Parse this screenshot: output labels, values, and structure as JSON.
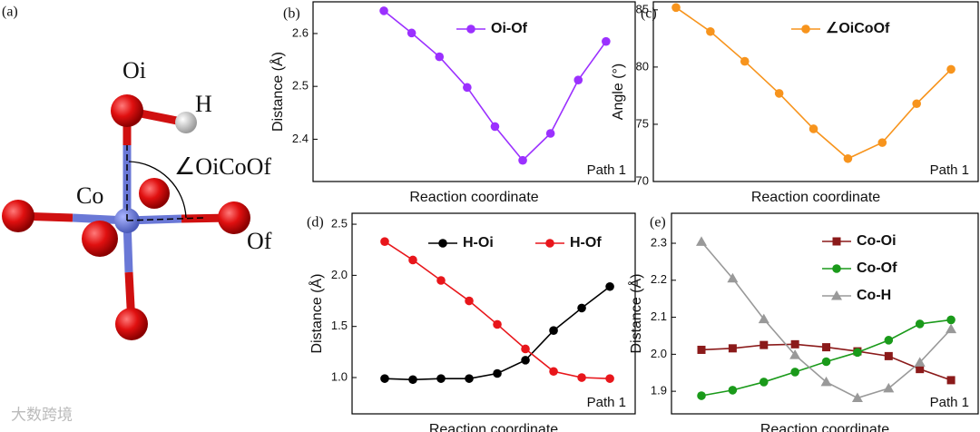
{
  "structure": {
    "label": "(a)",
    "atoms": [
      "Oi",
      "H",
      "Co",
      "Of"
    ],
    "angle": "∠OiCoOf"
  },
  "watermark": "大数跨境",
  "chart_data": [
    {
      "type": "line",
      "label": "(b)",
      "ylabel": "Distance (Å)",
      "xlabel": "Reaction coordinate",
      "annotation": "Path 1",
      "x": [
        1,
        2,
        3,
        4,
        5,
        6,
        7,
        8,
        9
      ],
      "xlim": [
        -1.55,
        10.05
      ],
      "ylim": [
        2.32,
        2.66
      ],
      "yticks": [
        2.4,
        2.5,
        2.6
      ],
      "series": [
        {
          "name": "Oi-Of",
          "color": "#9b30ff",
          "marker": "circle",
          "values": [
            2.643,
            2.601,
            2.556,
            2.498,
            2.424,
            2.36,
            2.411,
            2.512,
            2.585
          ]
        }
      ]
    },
    {
      "type": "line",
      "label": "(c)",
      "ylabel": "Angle (°)",
      "xlabel": "Reaction coordinate",
      "annotation": "Path 1",
      "x": [
        1,
        2,
        3,
        4,
        5,
        6,
        7,
        8,
        9
      ],
      "xlim": [
        0.34,
        9.79
      ],
      "ylim": [
        70,
        85.7
      ],
      "yticks": [
        70,
        75,
        80,
        85
      ],
      "series": [
        {
          "name": "∠OiCoOf",
          "color": "#f7941d",
          "marker": "circle",
          "values": [
            85.2,
            83.1,
            80.5,
            77.7,
            74.6,
            72.0,
            73.4,
            76.8,
            79.8
          ]
        }
      ]
    },
    {
      "type": "line",
      "label": "(d)",
      "ylabel": "Distance (Å)",
      "xlabel": "Reaction coordinate",
      "annotation": "Path 1",
      "x": [
        1,
        2,
        3,
        4,
        5,
        6,
        7,
        8,
        9
      ],
      "xlim": [
        -0.16,
        9.9
      ],
      "ylim": [
        0.645,
        2.607
      ],
      "yticks": [
        {
          "value": 1,
          "label": "1.0"
        },
        1.5,
        {
          "value": 2,
          "label": "2.0"
        },
        2.5
      ],
      "series": [
        {
          "name": "H-Oi",
          "color": "#000000",
          "marker": "circle",
          "values": [
            0.99,
            0.98,
            0.99,
            0.99,
            1.04,
            1.17,
            1.46,
            1.68,
            1.89
          ]
        },
        {
          "name": "H-Of",
          "color": "#e8161b",
          "marker": "circle",
          "values": [
            2.33,
            2.15,
            1.95,
            1.75,
            1.52,
            1.28,
            1.06,
            1.0,
            0.99
          ]
        }
      ]
    },
    {
      "type": "line",
      "label": "(e)",
      "ylabel": "Distance (Å)",
      "xlabel": "Reaction coordinate",
      "annotation": "Path 1",
      "x": [
        1,
        2,
        3,
        4,
        5,
        6,
        7,
        8,
        9
      ],
      "xlim": [
        0.04,
        9.87
      ],
      "ylim": [
        1.839,
        2.381
      ],
      "yticks": [
        1.9,
        {
          "value": 2,
          "label": "2.0"
        },
        2.1,
        2.2,
        2.3
      ],
      "series": [
        {
          "name": "Co-Oi",
          "color": "#8b1a1a",
          "marker": "square",
          "values": [
            2.012,
            2.016,
            2.025,
            2.027,
            2.019,
            2.008,
            1.995,
            1.96,
            1.93
          ]
        },
        {
          "name": "Co-Of",
          "color": "#1a9a1a",
          "marker": "circle",
          "values": [
            1.888,
            1.903,
            1.925,
            1.952,
            1.98,
            2.005,
            2.038,
            2.082,
            2.093
          ]
        },
        {
          "name": "Co-H",
          "color": "#999999",
          "marker": "triangle",
          "values": [
            2.304,
            2.205,
            2.095,
            1.998,
            1.925,
            1.882,
            1.908,
            1.978,
            2.068
          ]
        }
      ]
    }
  ]
}
